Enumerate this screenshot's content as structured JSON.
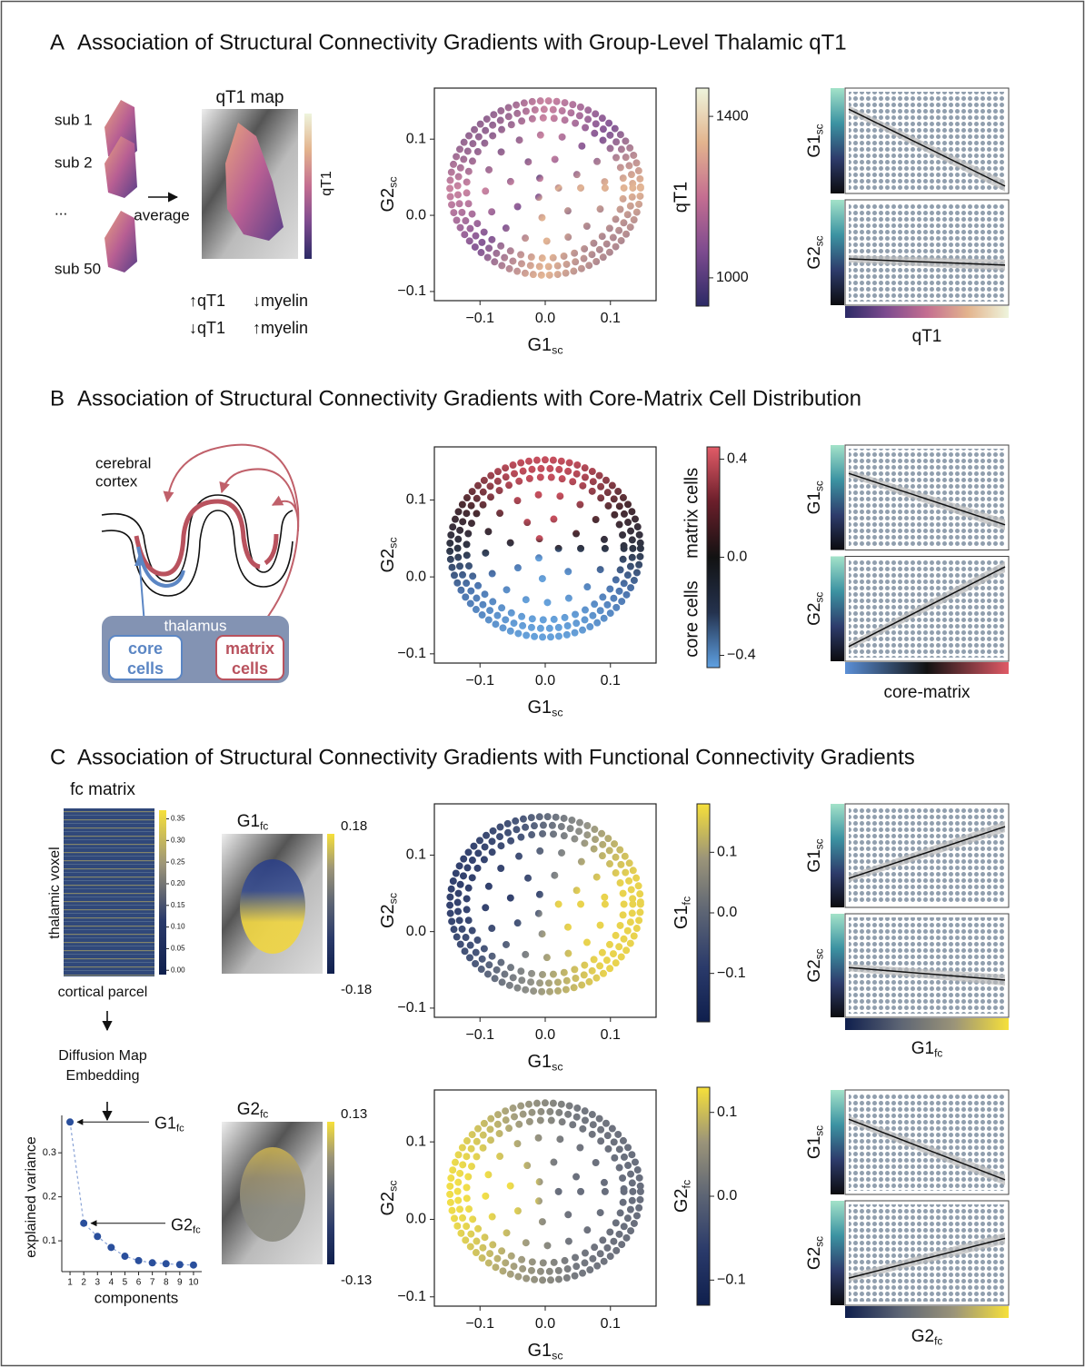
{
  "panels": [
    {
      "label": "A",
      "title": "Association of Structural Connectivity Gradients with Group-Level Thalamic qT1",
      "schematic": {
        "subjects": [
          "sub 1",
          "sub 2",
          "...",
          "sub 50"
        ],
        "arrow_label": "average",
        "map_title": "qT1 map",
        "map_colorbar": "qT1",
        "legend": [
          [
            "↑qT1",
            "↓myelin"
          ],
          [
            "↓qT1",
            "↑myelin"
          ]
        ]
      },
      "scatters": [
        {
          "type": "scatter",
          "xlabel": {
            "main": "G1",
            "sub": "sc"
          },
          "ylabel": {
            "main": "G2",
            "sub": "sc"
          },
          "xlim": [
            -0.17,
            0.17
          ],
          "ylim": [
            -0.112,
            0.167
          ],
          "xticks": [
            {
              "value": -0.1,
              "label": "−0.1"
            },
            {
              "value": 0,
              "label": "0.0"
            },
            0.1
          ],
          "yticks": [
            {
              "value": -0.1,
              "label": "−0.1"
            },
            {
              "value": 0,
              "label": "0.0"
            },
            0.1
          ],
          "colorbar": {
            "labels": [
              "qT1"
            ],
            "clim": [
              930,
              1470
            ],
            "ticks": [
              1000,
              1400
            ],
            "colors": [
              "#eef4dc",
              "#e3b48e",
              "#c46e91",
              "#7d4b8f",
              "#2c2a66"
            ]
          }
        }
      ],
      "correlations": [
        {
          "ylabels": [
            {
              "main": "G1",
              "sub": "sc"
            },
            {
              "main": "G2",
              "sub": "sc"
            }
          ],
          "xlabel": "qT1",
          "x_colors": [
            "#2c2a66",
            "#7d4b8f",
            "#c46e91",
            "#e3b48e",
            "#eef4dc"
          ],
          "y_colors": [
            "#a3e2c9",
            "#3c93a2",
            "#2e3c6c",
            "#0b0b0e"
          ]
        }
      ]
    },
    {
      "label": "B",
      "title": "Association of Structural Connectivity Gradients with Core-Matrix Cell Distribution",
      "schematic": {
        "cortex_label": [
          "cerebral",
          "cortex"
        ],
        "thalamus": "thalamus",
        "core": [
          "core",
          "cells"
        ],
        "matrix": [
          "matrix",
          "cells"
        ]
      },
      "scatters": [
        {
          "type": "scatter",
          "xlabel": {
            "main": "G1",
            "sub": "sc"
          },
          "ylabel": {
            "main": "G2",
            "sub": "sc"
          },
          "xlim": [
            -0.17,
            0.17
          ],
          "ylim": [
            -0.112,
            0.169
          ],
          "xticks": [
            {
              "value": -0.1,
              "label": "−0.1"
            },
            {
              "value": 0,
              "label": "0.0"
            },
            0.1
          ],
          "yticks": [
            {
              "value": -0.1,
              "label": "−0.1"
            },
            {
              "value": 0,
              "label": "0.0"
            },
            0.1
          ],
          "colorbar": {
            "labels": [
              "matrix cells",
              "core cells"
            ],
            "clim": [
              -0.45,
              0.45
            ],
            "ticks": [
              0.4,
              {
                "value": 0,
                "label": "0.0"
              },
              {
                "value": -0.4,
                "label": "−0.4"
              }
            ],
            "colors": [
              "#e25c68",
              "#6a1e2a",
              "#121212",
              "#24324e",
              "#5ea0e2"
            ]
          }
        }
      ],
      "correlations": [
        {
          "ylabels": [
            {
              "main": "G1",
              "sub": "sc"
            },
            {
              "main": "G2",
              "sub": "sc"
            }
          ],
          "xlabel": "core-matrix",
          "x_colors": [
            "#5b8fd6",
            "#121212",
            "#e05a66"
          ],
          "y_colors": [
            "#a3e2c9",
            "#3c93a2",
            "#2e3c6c",
            "#0b0b0e"
          ]
        }
      ]
    },
    {
      "label": "C",
      "title": "Association of Structural Connectivity Gradients with Functional Connectivity Gradients",
      "schematic": {
        "fc_matrix": {
          "title": "fc matrix",
          "ylabel": "thalamic voxel",
          "xlabel": "cortical parcel",
          "clim": [
            -0.01,
            0.37
          ],
          "ticks": [
            {
              "value": 0,
              "label": "0.00"
            },
            0.05,
            {
              "value": 0.1,
              "label": "0.10"
            },
            0.15,
            {
              "value": 0.2,
              "label": "0.20"
            },
            0.25,
            {
              "value": 0.3,
              "label": "0.30"
            },
            0.35
          ]
        },
        "embedding": [
          "Diffusion Map",
          "Embedding"
        ],
        "maps": [
          {
            "title": {
              "main": "G1",
              "sub": "fc"
            },
            "ticks": [
              0.18,
              -0.18
            ]
          },
          {
            "title": {
              "main": "G2",
              "sub": "fc"
            },
            "ticks": [
              0.13,
              -0.13
            ]
          }
        ],
        "variance": {
          "type": "line",
          "x": [
            1,
            2,
            3,
            4,
            5,
            6,
            7,
            8,
            9,
            10
          ],
          "values": [
            0.37,
            0.14,
            0.11,
            0.085,
            0.065,
            0.055,
            0.05,
            0.048,
            0.046,
            0.045
          ],
          "xlim": [
            0.4,
            10.6
          ],
          "ylim": [
            0.03,
            0.385
          ],
          "xticks": [
            1,
            2,
            3,
            4,
            5,
            6,
            7,
            8,
            9,
            10
          ],
          "yticks": [
            0.1,
            0.2,
            0.3
          ],
          "xlabel": "components",
          "ylabel": "explained variance",
          "color": "#2a4f9c",
          "annotations": [
            {
              "main": "G1",
              "sub": "fc"
            },
            {
              "main": "G2",
              "sub": "fc"
            }
          ]
        }
      },
      "scatters": [
        {
          "type": "scatter",
          "xlabel": {
            "main": "G1",
            "sub": "sc"
          },
          "ylabel": {
            "main": "G2",
            "sub": "sc"
          },
          "xlim": [
            -0.17,
            0.17
          ],
          "ylim": [
            -0.112,
            0.167
          ],
          "xticks": [
            {
              "value": -0.1,
              "label": "−0.1"
            },
            {
              "value": 0,
              "label": "0.0"
            },
            0.1
          ],
          "yticks": [
            {
              "value": -0.1,
              "label": "−0.1"
            },
            {
              "value": 0,
              "label": "0.0"
            },
            0.1
          ],
          "colorbar": {
            "labels": [
              {
                "main": "G1",
                "sub": "fc"
              }
            ],
            "clim": [
              -0.18,
              0.18
            ],
            "ticks": [
              0.1,
              {
                "value": 0,
                "label": "0.0"
              },
              {
                "value": -0.1,
                "label": "−0.1"
              }
            ],
            "colors": [
              "#f6e03a",
              "#9b9479",
              "#5c6474",
              "#2a3a6a",
              "#0f1f4d"
            ]
          }
        },
        {
          "type": "scatter",
          "xlabel": {
            "main": "G1",
            "sub": "sc"
          },
          "ylabel": {
            "main": "G2",
            "sub": "sc"
          },
          "xlim": [
            -0.17,
            0.17
          ],
          "ylim": [
            -0.112,
            0.167
          ],
          "xticks": [
            {
              "value": -0.1,
              "label": "−0.1"
            },
            {
              "value": 0,
              "label": "0.0"
            },
            0.1
          ],
          "yticks": [
            {
              "value": -0.1,
              "label": "−0.1"
            },
            {
              "value": 0,
              "label": "0.0"
            },
            0.1
          ],
          "colorbar": {
            "labels": [
              {
                "main": "G2",
                "sub": "fc"
              }
            ],
            "clim": [
              -0.13,
              0.13
            ],
            "ticks": [
              0.1,
              {
                "value": 0,
                "label": "0.0"
              },
              {
                "value": -0.1,
                "label": "−0.1"
              }
            ],
            "colors": [
              "#f6e03a",
              "#9b9479",
              "#5c6474",
              "#2a3a6a",
              "#0f1f4d"
            ]
          }
        }
      ],
      "correlations": [
        {
          "ylabels": [
            {
              "main": "G1",
              "sub": "sc"
            },
            {
              "main": "G2",
              "sub": "sc"
            }
          ],
          "xlabel": {
            "main": "G1",
            "sub": "fc"
          },
          "x_colors": [
            "#0f1f4d",
            "#5c6474",
            "#9b9479",
            "#f6e03a"
          ],
          "y_colors": [
            "#a3e2c9",
            "#3c93a2",
            "#2e3c6c",
            "#0b0b0e"
          ]
        },
        {
          "ylabels": [
            {
              "main": "G1",
              "sub": "sc"
            },
            {
              "main": "G2",
              "sub": "sc"
            }
          ],
          "xlabel": {
            "main": "G2",
            "sub": "fc"
          },
          "x_colors": [
            "#0f1f4d",
            "#5c6474",
            "#9b9479",
            "#f6e03a"
          ],
          "y_colors": [
            "#a3e2c9",
            "#3c93a2",
            "#2e3c6c",
            "#0b0b0e"
          ]
        }
      ]
    }
  ]
}
